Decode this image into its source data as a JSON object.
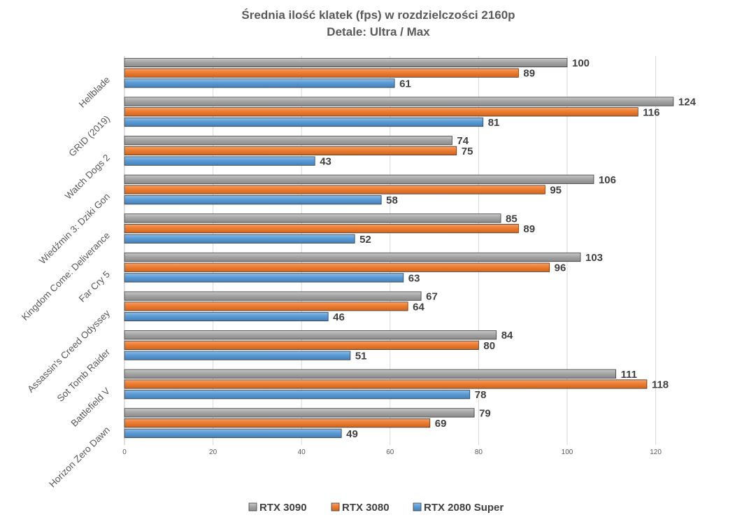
{
  "chart_data": {
    "type": "bar",
    "orientation": "horizontal",
    "title": "Średnia ilość klatek (fps) w rozdzielczości 2160p",
    "subtitle": "Detale: Ultra / Max",
    "categories": [
      "Hellblade",
      "GRID (2019)",
      "Watch Dogs 2",
      "Wiedźmin 3: Dziki Gon",
      "Kingdom Come: Deliverance",
      "Far Cry 5",
      "Assassin's Creed Odyssey",
      "Sot Tomb Raider",
      "Battlefield V",
      "Horizon Zero Dawn"
    ],
    "series": [
      {
        "name": "RTX 3090",
        "color": "#a5a5a5",
        "values": [
          100,
          124,
          74,
          106,
          85,
          103,
          67,
          84,
          111,
          79
        ]
      },
      {
        "name": "RTX 3080",
        "color": "#ed7d31",
        "values": [
          89,
          116,
          75,
          95,
          89,
          96,
          64,
          80,
          118,
          69
        ]
      },
      {
        "name": "RTX 2080 Super",
        "color": "#5b9bd5",
        "values": [
          61,
          81,
          43,
          58,
          52,
          63,
          46,
          51,
          78,
          49
        ]
      }
    ],
    "xlim": [
      0,
      130
    ],
    "xticks": [
      0,
      20,
      40,
      60,
      80,
      100,
      120
    ],
    "grid": true,
    "legend_position": "bottom"
  }
}
